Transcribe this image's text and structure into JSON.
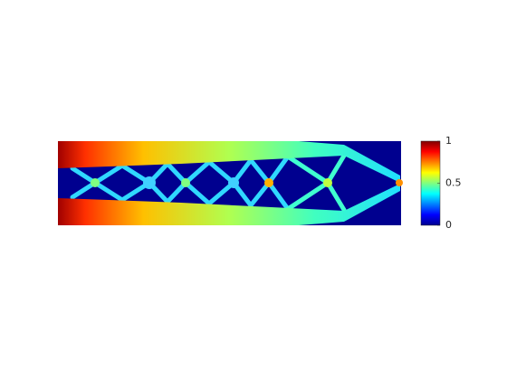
{
  "chart_data": {
    "type": "heatmap",
    "colormap": "jet",
    "clim": [
      0,
      1
    ],
    "cticks": [
      0,
      0.5,
      1
    ]
  }
}
